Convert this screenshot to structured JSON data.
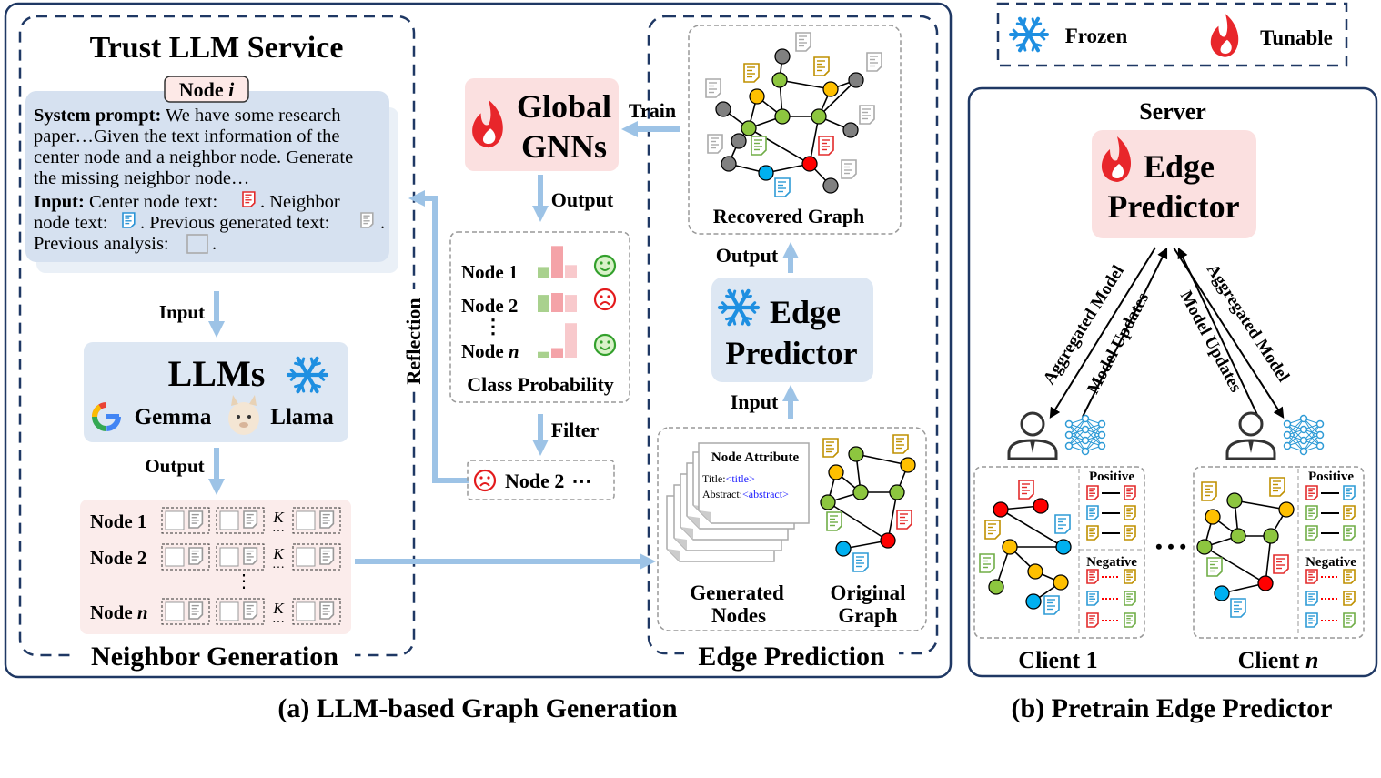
{
  "panel_a": {
    "caption": "(a) LLM-based Graph Generation",
    "neighbor_generation": {
      "title": "Trust LLM Service",
      "section_label": "Neighbor Generation",
      "node_tag": "Node ",
      "node_tag_var": "i",
      "prompt_lines": [
        {
          "bold": "System prompt:",
          "text": " We have some research"
        },
        {
          "bold": "",
          "text": "paper…Given the text information of the"
        },
        {
          "bold": "",
          "text": "center node and a neighbor node. Generate"
        },
        {
          "bold": "",
          "text": "the missing neighbor node…"
        },
        {
          "bold": "Input:",
          "text": " Center node text:"
        },
        {
          "bold": "",
          "text": "node text:"
        },
        {
          "bold": "",
          "text": "Previous analysis:"
        }
      ],
      "prompt_inline": {
        "neighbor": ". Neighbor",
        "prev_generated": ". Previous generated text:",
        "end": "."
      },
      "input_label": "Input",
      "llms_label": "LLMs",
      "models": [
        "Gemma",
        "Llama"
      ],
      "output_label": "Output",
      "generated_rows": [
        {
          "label": "Node 1"
        },
        {
          "label": "Node 2"
        },
        {
          "label": "Node ",
          "var": "n"
        }
      ],
      "k_label": "K"
    },
    "reflection_label": "Reflection",
    "global_gnns": {
      "line1": "Global",
      "line2": "GNNs"
    },
    "train_label": "Train",
    "gnn_output_label": "Output",
    "class_probability": {
      "title": "Class Probability",
      "rows": [
        {
          "label": "Node 1",
          "status": "happy",
          "probs": [
            0.3,
            0.85,
            0.35
          ]
        },
        {
          "label": "Node 2",
          "status": "sad",
          "probs": [
            0.45,
            0.5,
            0.45
          ]
        },
        {
          "label": "Node ",
          "var": "n",
          "status": "happy",
          "probs": [
            0.15,
            0.25,
            0.9
          ]
        }
      ]
    },
    "filter_label": "Filter",
    "filtered": {
      "label": "Node 2",
      "ellipsis": "⋯"
    },
    "edge_prediction": {
      "section_label": "Edge Prediction",
      "recovered_graph_label": "Recovered Graph",
      "output_label": "Output",
      "predictor_line1": "Edge",
      "predictor_line2": "Predictor",
      "input_label": "Input",
      "node_attribute": {
        "title": "Node Attribute",
        "title_field": "Title:",
        "title_value": "<title>",
        "abstract_field": "Abstract:",
        "abstract_value": "<abstract>"
      },
      "generated_nodes_label": [
        "Generated",
        "Nodes"
      ],
      "original_graph_label": [
        "Original",
        "Graph"
      ]
    }
  },
  "legend": {
    "frozen": "Frozen",
    "tunable": "Tunable"
  },
  "panel_b": {
    "caption": "(b) Pretrain Edge Predictor",
    "server_label": "Server",
    "predictor_line1": "Edge",
    "predictor_line2": "Predictor",
    "arrow_labels": {
      "left_outer": "Aggregated Model",
      "left_inner": "Model Updates",
      "right_inner": "Model Updates",
      "right_outer": "Aggregated Model"
    },
    "clients": [
      {
        "name": "Client 1",
        "var": ""
      },
      {
        "name": "Client ",
        "var": "n"
      }
    ],
    "positive_label": "Positive",
    "negative_label": "Negative",
    "ellipsis": "• • •"
  },
  "colors": {
    "navy": "#1f3864",
    "arrow": "#9dc3e6",
    "blue_box": "#dde7f3",
    "pink_box": "#fbe0e0",
    "node_green": "#8dc63f",
    "node_yellow": "#ffc000",
    "node_red": "#ff0000",
    "node_blue": "#00b0f0",
    "node_gray": "#808080",
    "flame": "#e8262b",
    "snowflake": "#1e8fe1"
  }
}
